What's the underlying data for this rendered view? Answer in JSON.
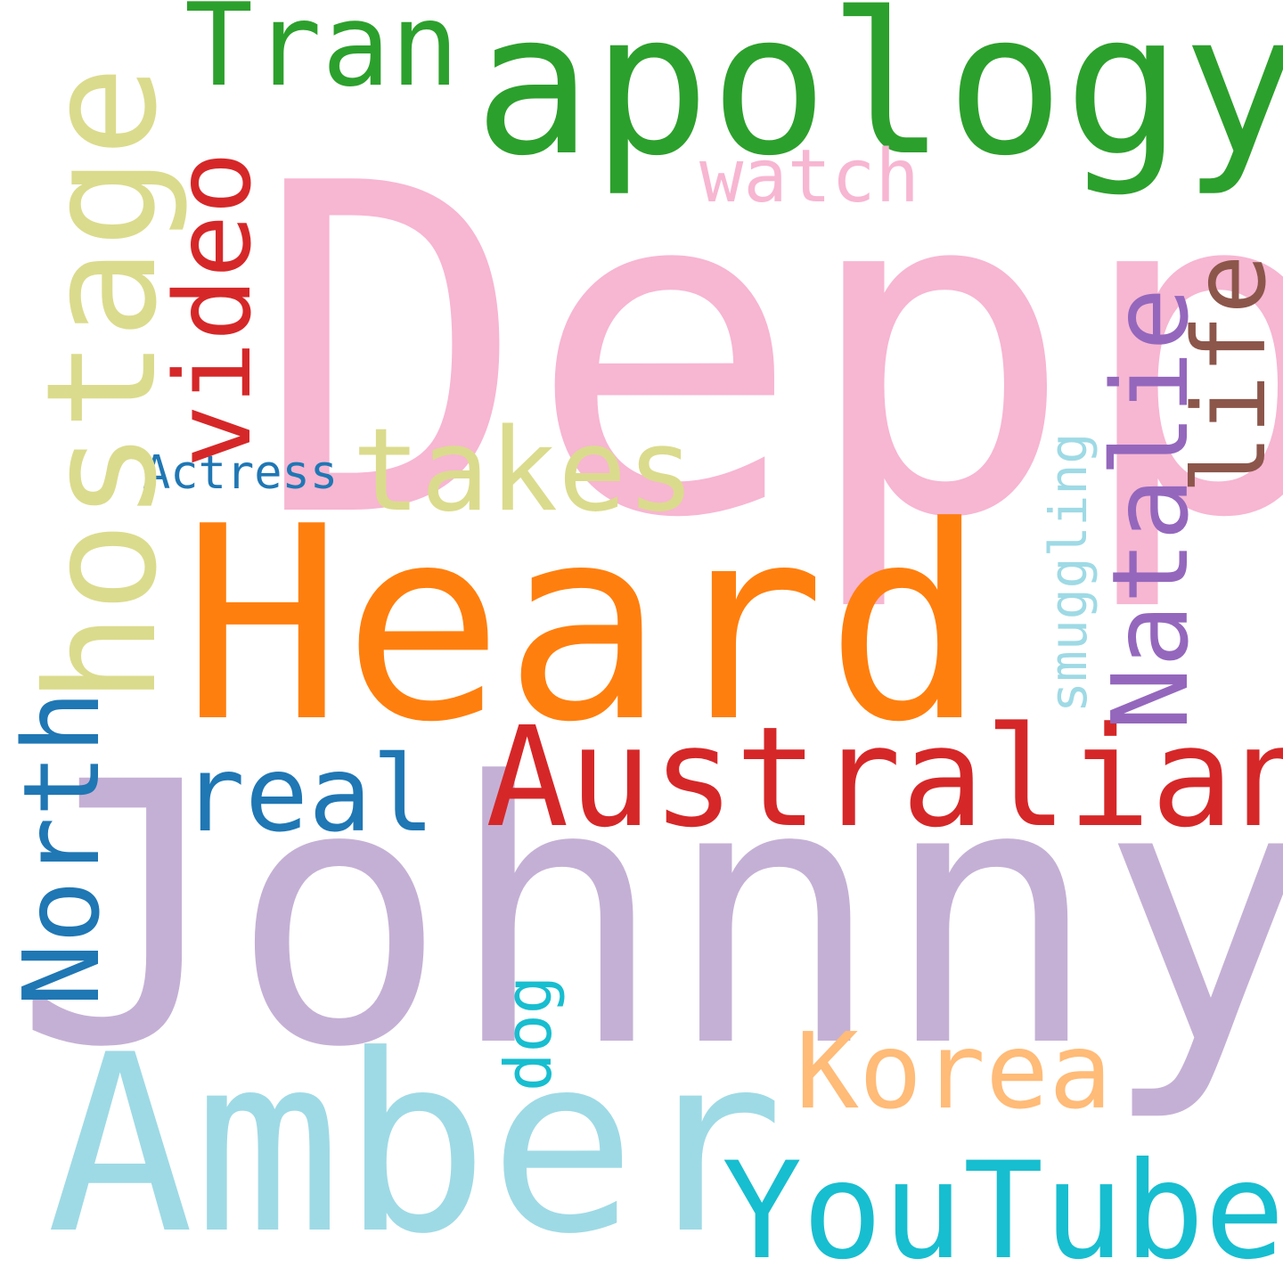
{
  "words": {
    "depp": {
      "text": "Depp",
      "color": "#f7b6d2"
    },
    "johnny": {
      "text": "Johnny",
      "color": "#c5b0d5"
    },
    "heard": {
      "text": "Heard",
      "color": "#ff7f0e"
    },
    "amber": {
      "text": "Amber",
      "color": "#9edae5"
    },
    "apology": {
      "text": "apology",
      "color": "#2ca02c"
    },
    "australian": {
      "text": "Australian",
      "color": "#d62728"
    },
    "youtuber": {
      "text": "YouTuber",
      "color": "#17becf"
    },
    "tran": {
      "text": "Tran",
      "color": "#2ca02c"
    },
    "takes": {
      "text": "takes",
      "color": "#dbdb8d"
    },
    "korea": {
      "text": "Korea",
      "color": "#ffbb78"
    },
    "real": {
      "text": "real",
      "color": "#1f77b4"
    },
    "watch": {
      "text": "watch",
      "color": "#f7b6d2"
    },
    "actress": {
      "text": "Actress",
      "color": "#1f77b4"
    },
    "hostage": {
      "text": "hostage",
      "color": "#dbdb8d"
    },
    "north": {
      "text": "North",
      "color": "#1f77b4"
    },
    "video": {
      "text": "video",
      "color": "#d62728"
    },
    "natalie": {
      "text": "Natalie",
      "color": "#9467bd"
    },
    "life": {
      "text": "life",
      "color": "#8c564b"
    },
    "smuggling": {
      "text": "smuggling",
      "color": "#9edae5"
    },
    "dog": {
      "text": "dog",
      "color": "#17becf"
    }
  }
}
